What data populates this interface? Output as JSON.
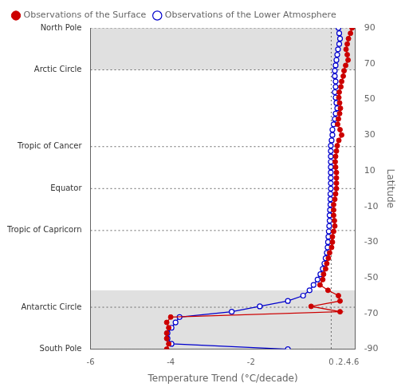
{
  "chart_data": {
    "type": "line",
    "xlabel": "Temperature Trend (°C/decade)",
    "ylabel": "Latitude",
    "xlim": [
      -6,
      0.6
    ],
    "xticks": [
      -6,
      -4,
      -2,
      0,
      {
        "value": 0.2,
        "label": ".2"
      },
      {
        "value": 0.4,
        "label": ".4"
      },
      {
        "value": 0.6,
        "label": ".6"
      }
    ],
    "ylim": [
      -90,
      90
    ],
    "yticks": [
      90,
      70,
      50,
      30,
      10,
      -10,
      -30,
      -50,
      -70,
      -90
    ],
    "legend": "upper left",
    "series": [
      {
        "name": "Observations of the Surface",
        "color": "#cc0000",
        "marker": "circle",
        "x": [
          0.52,
          0.48,
          0.43,
          0.4,
          0.37,
          0.4,
          0.42,
          0.36,
          0.32,
          0.3,
          0.26,
          0.24,
          0.2,
          0.19,
          0.21,
          0.23,
          0.21,
          0.18,
          0.16,
          0.22,
          0.26,
          0.19,
          0.15,
          0.13,
          0.11,
          0.1,
          0.11,
          0.13,
          0.13,
          0.13,
          0.13,
          0.11,
          0.09,
          0.06,
          0.06,
          0.06,
          0.08,
          0.09,
          0.06,
          0.03,
          0.03,
          0.01,
          -0.04,
          -0.07,
          -0.11,
          -0.14,
          -0.19,
          -0.21,
          -0.28,
          -0.08,
          0.18,
          0.22,
          -0.5,
          0.22,
          -4.0,
          -4.1,
          -4.05,
          -4.1,
          -4.1,
          -4.05,
          -4.1
        ],
        "y": [
          90,
          87,
          84,
          81,
          78,
          75,
          72,
          69,
          66,
          63,
          60,
          57,
          54,
          51,
          48,
          45,
          42,
          39,
          36,
          33,
          30,
          27,
          24,
          21,
          18,
          15,
          12,
          9,
          6,
          3,
          0,
          -3,
          -6,
          -9,
          -12,
          -15,
          -18,
          -21,
          -24,
          -27,
          -30,
          -33,
          -36,
          -39,
          -42,
          -45,
          -48,
          -51,
          -54,
          -57,
          -60,
          -63,
          -66,
          -69,
          -72,
          -75,
          -78,
          -81,
          -84,
          -87,
          -90
        ]
      },
      {
        "name": "Observations of the Lower Atmosphere",
        "color": "#0000cc",
        "marker": "open_circle",
        "x": [
          0.18,
          0.2,
          0.22,
          0.2,
          0.17,
          0.15,
          0.13,
          0.11,
          0.09,
          0.09,
          0.11,
          0.11,
          0.09,
          0.11,
          0.13,
          0.15,
          0.11,
          0.09,
          0.06,
          0.03,
          0.03,
          0.01,
          -0.01,
          -0.01,
          -0.01,
          -0.01,
          -0.01,
          -0.01,
          -0.01,
          -0.01,
          -0.01,
          -0.02,
          -0.02,
          -0.02,
          -0.03,
          -0.04,
          -0.04,
          -0.05,
          -0.06,
          -0.07,
          -0.08,
          -0.09,
          -0.11,
          -0.14,
          -0.17,
          -0.21,
          -0.27,
          -0.34,
          -0.44,
          -0.54,
          -0.7,
          -1.08,
          -1.78,
          -2.48,
          -3.78,
          -3.88,
          -3.98,
          -4.08,
          -4.08,
          -3.98,
          -1.08
        ],
        "y": [
          90,
          87,
          84,
          81,
          78,
          75,
          72,
          69,
          66,
          63,
          60,
          57,
          54,
          51,
          48,
          45,
          42,
          39,
          36,
          33,
          30,
          27,
          24,
          21,
          18,
          15,
          12,
          9,
          6,
          3,
          0,
          -3,
          -6,
          -9,
          -12,
          -15,
          -18,
          -21,
          -24,
          -27,
          -30,
          -33,
          -36,
          -39,
          -42,
          -45,
          -48,
          -51,
          -54,
          -57,
          -60,
          -63,
          -66,
          -69,
          -72,
          -75,
          -78,
          -81,
          -84,
          -87,
          -90
        ]
      }
    ],
    "annotations": [
      {
        "text": "North Pole",
        "y": 90
      },
      {
        "text": "Arctic Circle",
        "y": 66.5
      },
      {
        "text": "Tropic of Cancer",
        "y": 23.5
      },
      {
        "text": "Equator",
        "y": 0
      },
      {
        "text": "Tropic of Capricorn",
        "y": -23.5
      },
      {
        "text": "Antarctic Circle",
        "y": -66.5
      },
      {
        "text": "South Pole",
        "y": -90
      }
    ],
    "reference_lines": [
      {
        "x": 0
      }
    ],
    "shaded_bands": [
      [
        66.5,
        90
      ],
      [
        -90,
        -57
      ]
    ]
  }
}
